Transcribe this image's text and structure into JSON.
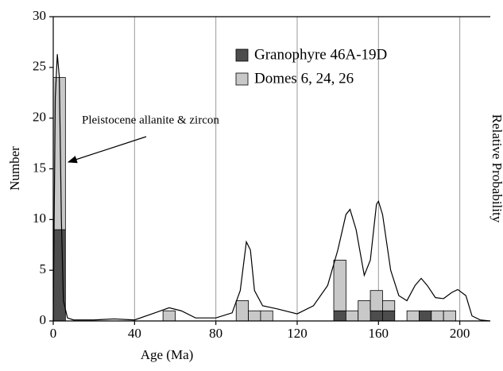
{
  "chart_data": {
    "type": "histogram",
    "x_label": "Age (Ma)",
    "y_label": "Number",
    "y2_label": "Relative Probability",
    "annotation": "Pleistocene allanite & zircon",
    "xlim": [
      0,
      215
    ],
    "xticks": [
      0,
      40,
      80,
      120,
      160,
      200
    ],
    "ylim": [
      0,
      30
    ],
    "yticks": [
      0,
      5,
      10,
      15,
      20,
      25,
      30
    ],
    "grid": "x",
    "stacked": true,
    "bins": [
      0,
      6,
      12,
      18,
      24,
      30,
      36,
      42,
      48,
      54,
      60,
      66,
      72,
      78,
      84,
      90,
      96,
      102,
      108,
      114,
      120,
      126,
      132,
      138,
      144,
      150,
      156,
      162,
      168,
      174,
      180,
      186,
      192,
      198,
      204
    ],
    "series": [
      {
        "name": "Granophyre 46A-19D",
        "color": "#4d4d4d",
        "values": [
          9,
          0,
          0,
          0,
          0,
          0,
          0,
          0,
          0,
          0,
          0,
          0,
          0,
          0,
          0,
          0,
          0,
          0,
          0,
          0,
          0,
          0,
          0,
          1,
          0,
          0,
          1,
          1,
          0,
          0,
          1,
          0,
          0,
          0
        ]
      },
      {
        "name": "Domes 6, 24, 26",
        "color": "#c8c8c8",
        "values": [
          15,
          0,
          0,
          0,
          0,
          0,
          0,
          0,
          0,
          1,
          0,
          0,
          0,
          0,
          0,
          2,
          1,
          1,
          0,
          0,
          0,
          0,
          0,
          5,
          1,
          2,
          2,
          1,
          0,
          1,
          0,
          1,
          1,
          0
        ]
      }
    ],
    "curve": {
      "color": "#000000",
      "x": [
        0,
        1,
        2,
        3,
        4,
        5,
        7,
        10,
        20,
        30,
        40,
        50,
        57,
        63,
        70,
        80,
        88,
        92,
        95,
        97,
        99,
        103,
        110,
        120,
        128,
        135,
        140,
        144,
        146,
        149,
        153,
        156,
        159,
        160,
        162,
        166,
        170,
        174,
        178,
        181,
        184,
        188,
        192,
        196,
        199,
        203,
        206,
        210,
        215
      ],
      "values": [
        0,
        22,
        26.3,
        24,
        10,
        2,
        0.3,
        0.1,
        0.1,
        0.2,
        0.1,
        0.8,
        1.3,
        1,
        0.3,
        0.3,
        0.8,
        3,
        7.8,
        7,
        3,
        1.5,
        1.2,
        0.7,
        1.5,
        3.5,
        7,
        10.5,
        11,
        9,
        4.5,
        6,
        11.5,
        11.8,
        10.5,
        5,
        2.5,
        2,
        3.5,
        4.2,
        3.5,
        2.3,
        2.2,
        2.8,
        3.1,
        2.5,
        0.5,
        0.1,
        0
      ]
    }
  }
}
